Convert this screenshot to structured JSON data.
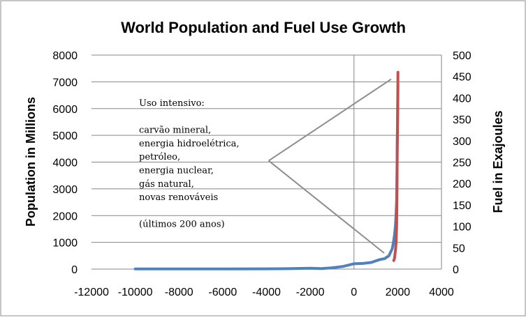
{
  "chart_data": {
    "type": "line",
    "title": "World Population and Fuel Use Growth",
    "xlabel": "",
    "ylabel": "Population in Millions",
    "y2label": "Fuel in Exajoules",
    "xlim": [
      -12000,
      4000
    ],
    "ylim": [
      0,
      8000
    ],
    "y2lim": [
      0,
      500
    ],
    "grid": "horizontal",
    "x_ticks": [
      -12000,
      -10000,
      -8000,
      -6000,
      -4000,
      -2000,
      0,
      2000,
      4000
    ],
    "y_ticks": [
      0,
      1000,
      2000,
      3000,
      4000,
      5000,
      6000,
      7000,
      8000
    ],
    "y2_ticks": [
      0,
      50,
      100,
      150,
      200,
      250,
      300,
      350,
      400,
      450,
      500
    ],
    "series": [
      {
        "name": "Population",
        "axis": "left",
        "color": "#4f81bd",
        "points": [
          [
            -10000,
            5
          ],
          [
            -8000,
            6
          ],
          [
            -6000,
            8
          ],
          [
            -4000,
            10
          ],
          [
            -3000,
            15
          ],
          [
            -2000,
            30
          ],
          [
            -1500,
            20
          ],
          [
            -1000,
            50
          ],
          [
            -500,
            100
          ],
          [
            0,
            200
          ],
          [
            400,
            210
          ],
          [
            800,
            250
          ],
          [
            1000,
            310
          ],
          [
            1200,
            360
          ],
          [
            1400,
            390
          ],
          [
            1600,
            500
          ],
          [
            1750,
            760
          ],
          [
            1800,
            980
          ],
          [
            1850,
            1260
          ],
          [
            1900,
            1650
          ],
          [
            1950,
            2520
          ],
          [
            2000,
            6100
          ],
          [
            2010,
            6900
          ]
        ]
      },
      {
        "name": "Fuel",
        "axis": "right",
        "color": "#c0504d",
        "points": [
          [
            1820,
            20
          ],
          [
            1850,
            25
          ],
          [
            1875,
            35
          ],
          [
            1900,
            45
          ],
          [
            1925,
            62
          ],
          [
            1950,
            100
          ],
          [
            1960,
            140
          ],
          [
            1970,
            200
          ],
          [
            1980,
            290
          ],
          [
            1990,
            350
          ],
          [
            2000,
            400
          ],
          [
            2010,
            460
          ]
        ]
      }
    ],
    "annotation": {
      "lines": [
        "Uso intensivo:",
        "",
        "carvão mineral,",
        "energia hidroelétrica,",
        "petróleo,",
        "energia nuclear,",
        "gás natural,",
        "novas renováveis",
        "",
        "(últimos 200 anos)"
      ],
      "pointer_vertex": [
        -3900,
        4050
      ],
      "pointer_targets": [
        [
          1700,
          7100
        ],
        [
          1380,
          600
        ]
      ]
    }
  }
}
